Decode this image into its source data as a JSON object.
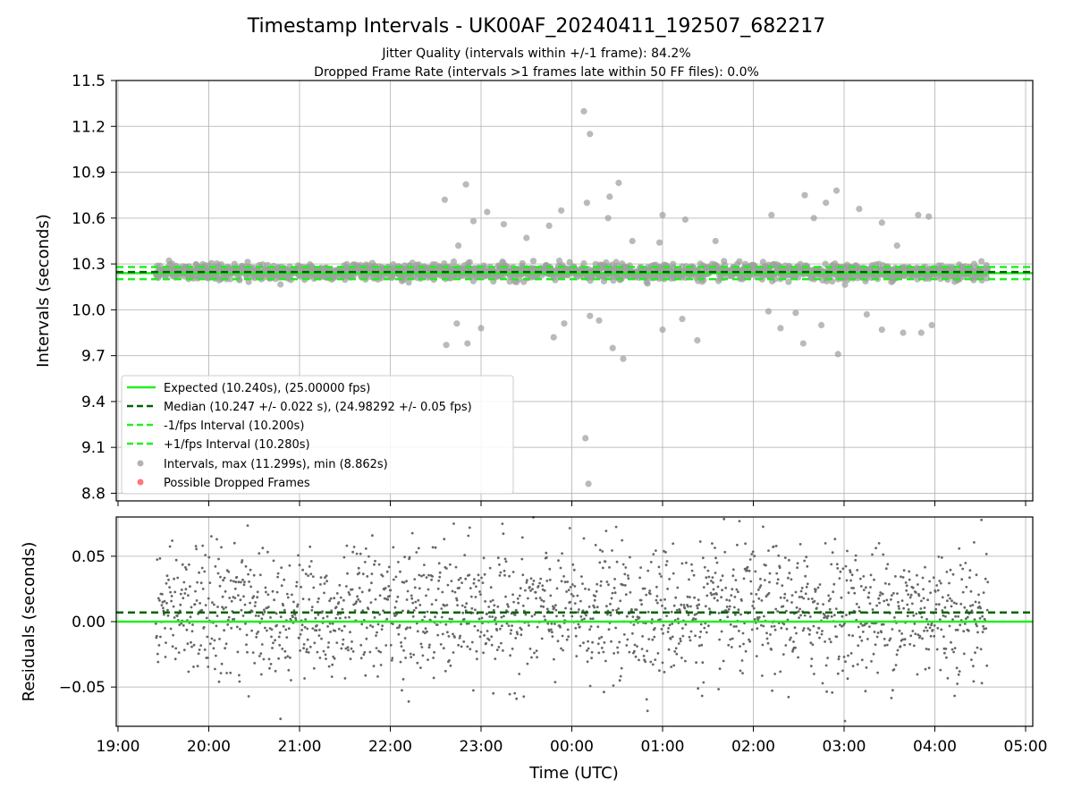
{
  "figure": {
    "title": "Timestamp Intervals - UK00AF_20240411_192507_682217",
    "subtitle_1": "Jitter Quality (intervals within +/-1 frame): 84.2%",
    "subtitle_2": "Dropped Frame Rate (intervals >1 frames late within 50 FF files): 0.0%"
  },
  "colors": {
    "expected": "#22ee22",
    "median": "#006400",
    "bounds": "#22ee22",
    "points": "#a0a0a0",
    "dropped": "#ff5555",
    "residual_points": "#666666",
    "grid": "#b0b0b0"
  },
  "chart_data": [
    {
      "type": "scatter",
      "name": "intervals",
      "ylabel": "Intervals (seconds)",
      "xlabel": "",
      "x_range": [
        "19:00",
        "05:00"
      ],
      "x_data_start": "19:25",
      "x_data_end": "04:35",
      "xticks": [
        "19:00",
        "20:00",
        "21:00",
        "22:00",
        "23:00",
        "00:00",
        "01:00",
        "02:00",
        "03:00",
        "04:00",
        "05:00"
      ],
      "ylim": [
        8.75,
        11.5
      ],
      "yticks": [
        "8.8",
        "9.1",
        "9.4",
        "9.7",
        "10.0",
        "10.3",
        "10.6",
        "10.9",
        "11.2",
        "11.5"
      ],
      "grid": true,
      "legend_position": "lower-left",
      "reference_lines": {
        "expected": 10.24,
        "median": 10.247,
        "lower": 10.2,
        "upper": 10.28
      },
      "legend": [
        {
          "label": "Expected (10.240s), (25.00000 fps)",
          "style": "solid-line"
        },
        {
          "label": "Median (10.247 +/- 0.022 s), (24.98292 +/- 0.05 fps)",
          "style": "dashed-line-dark"
        },
        {
          "label": "-1/fps Interval (10.200s)",
          "style": "dashed-line"
        },
        {
          "label": "+1/fps Interval (10.280s)",
          "style": "dashed-line"
        },
        {
          "label": "Intervals, max (11.299s), min (8.862s)",
          "style": "gray-dot"
        },
        {
          "label": "Possible Dropped Frames",
          "style": "red-dot"
        }
      ],
      "typical_spread": 0.025,
      "outliers": [
        {
          "t": "00:08",
          "v": 11.299
        },
        {
          "t": "00:12",
          "v": 11.15
        },
        {
          "t": "00:11",
          "v": 8.862
        },
        {
          "t": "00:09",
          "v": 9.16
        },
        {
          "t": "22:50",
          "v": 10.82
        },
        {
          "t": "22:36",
          "v": 10.72
        },
        {
          "t": "00:31",
          "v": 10.83
        },
        {
          "t": "02:55",
          "v": 10.78
        },
        {
          "t": "02:34",
          "v": 10.75
        },
        {
          "t": "00:10",
          "v": 10.7
        },
        {
          "t": "00:25",
          "v": 10.74
        },
        {
          "t": "23:04",
          "v": 10.64
        },
        {
          "t": "22:55",
          "v": 10.58
        },
        {
          "t": "23:15",
          "v": 10.56
        },
        {
          "t": "23:45",
          "v": 10.55
        },
        {
          "t": "23:53",
          "v": 10.65
        },
        {
          "t": "00:24",
          "v": 10.6
        },
        {
          "t": "01:00",
          "v": 10.62
        },
        {
          "t": "01:15",
          "v": 10.59
        },
        {
          "t": "02:12",
          "v": 10.62
        },
        {
          "t": "02:40",
          "v": 10.6
        },
        {
          "t": "03:10",
          "v": 10.66
        },
        {
          "t": "03:25",
          "v": 10.57
        },
        {
          "t": "03:49",
          "v": 10.62
        },
        {
          "t": "03:56",
          "v": 10.61
        },
        {
          "t": "02:48",
          "v": 10.7
        },
        {
          "t": "01:35",
          "v": 10.45
        },
        {
          "t": "23:30",
          "v": 10.47
        },
        {
          "t": "00:40",
          "v": 10.45
        },
        {
          "t": "22:45",
          "v": 10.42
        },
        {
          "t": "03:35",
          "v": 10.42
        },
        {
          "t": "00:58",
          "v": 10.44
        },
        {
          "t": "22:37",
          "v": 9.77
        },
        {
          "t": "22:51",
          "v": 9.78
        },
        {
          "t": "23:00",
          "v": 9.88
        },
        {
          "t": "22:44",
          "v": 9.91
        },
        {
          "t": "23:48",
          "v": 9.82
        },
        {
          "t": "00:27",
          "v": 9.75
        },
        {
          "t": "00:34",
          "v": 9.68
        },
        {
          "t": "01:23",
          "v": 9.8
        },
        {
          "t": "02:56",
          "v": 9.71
        },
        {
          "t": "02:33",
          "v": 9.78
        },
        {
          "t": "03:39",
          "v": 9.85
        },
        {
          "t": "03:51",
          "v": 9.85
        },
        {
          "t": "03:58",
          "v": 9.9
        },
        {
          "t": "01:00",
          "v": 9.87
        },
        {
          "t": "00:12",
          "v": 9.96
        },
        {
          "t": "00:18",
          "v": 9.93
        },
        {
          "t": "23:55",
          "v": 9.91
        },
        {
          "t": "01:13",
          "v": 9.94
        },
        {
          "t": "02:10",
          "v": 9.99
        },
        {
          "t": "02:28",
          "v": 9.98
        },
        {
          "t": "03:15",
          "v": 9.97
        },
        {
          "t": "03:25",
          "v": 9.87
        },
        {
          "t": "02:18",
          "v": 9.88
        },
        {
          "t": "02:45",
          "v": 9.9
        }
      ]
    },
    {
      "type": "scatter",
      "name": "residuals",
      "ylabel": "Residuals (seconds)",
      "xlabel": "Time (UTC)",
      "x_range": [
        "19:00",
        "05:00"
      ],
      "xticks": [
        "19:00",
        "20:00",
        "21:00",
        "22:00",
        "23:00",
        "00:00",
        "01:00",
        "02:00",
        "03:00",
        "04:00",
        "05:00"
      ],
      "ylim": [
        -0.08,
        0.08
      ],
      "yticks": [
        "−0.05",
        "0.00",
        "0.05"
      ],
      "ytick_values": [
        -0.05,
        0.0,
        0.05
      ],
      "grid": true,
      "reference_lines": {
        "zero": 0.0,
        "median_offset": 0.007
      },
      "typical_spread": 0.025
    }
  ]
}
